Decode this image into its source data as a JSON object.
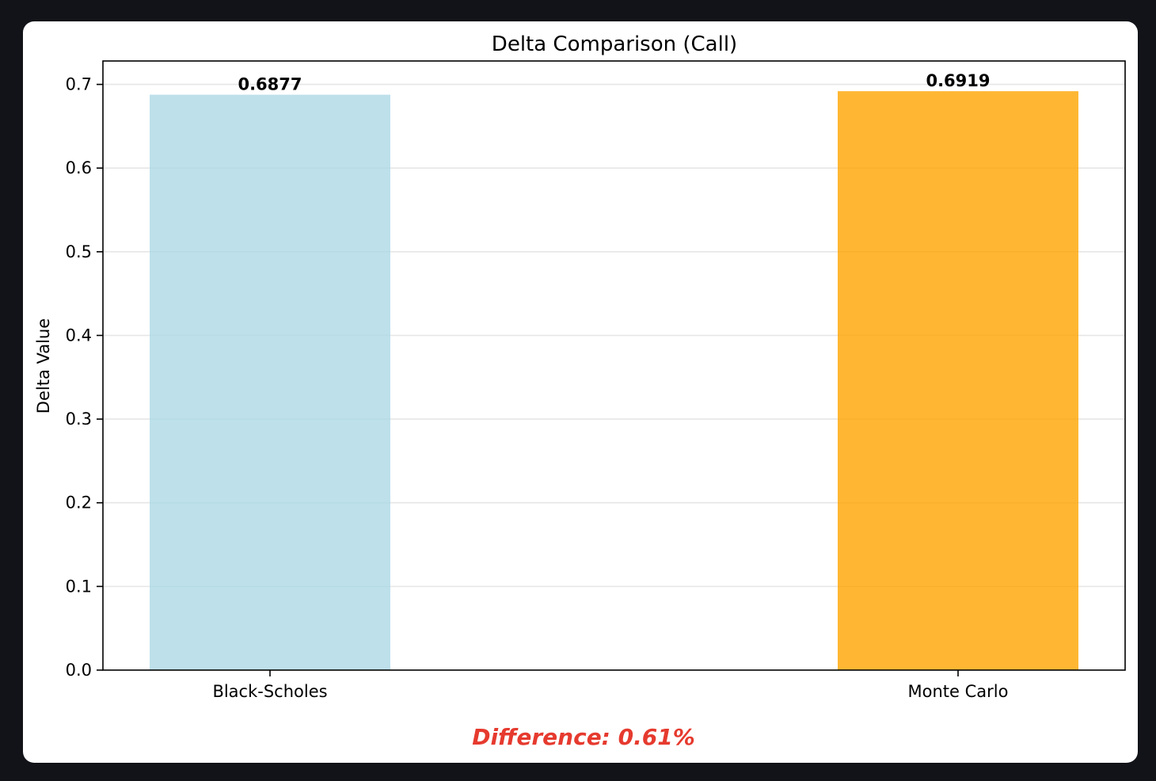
{
  "chart_data": {
    "type": "bar",
    "title": "Delta Comparison (Call)",
    "xlabel": "",
    "ylabel": "Delta Value",
    "categories": [
      "Black-Scholes",
      "Monte Carlo"
    ],
    "values": [
      0.6877,
      0.6919
    ],
    "value_labels": [
      "0.6877",
      "0.6919"
    ],
    "bar_colors": [
      "#add8e6",
      "#ffa500"
    ],
    "ylim": [
      0,
      0.728
    ],
    "yticks": [
      0.0,
      0.1,
      0.2,
      0.3,
      0.4,
      0.5,
      0.6,
      0.7
    ],
    "ytick_labels": [
      "0.0",
      "0.1",
      "0.2",
      "0.3",
      "0.4",
      "0.5",
      "0.6",
      "0.7"
    ],
    "grid": "horizontal",
    "legend": "none"
  },
  "annotation": {
    "text": "Difference: 0.61%",
    "color": "#e63a2e"
  }
}
